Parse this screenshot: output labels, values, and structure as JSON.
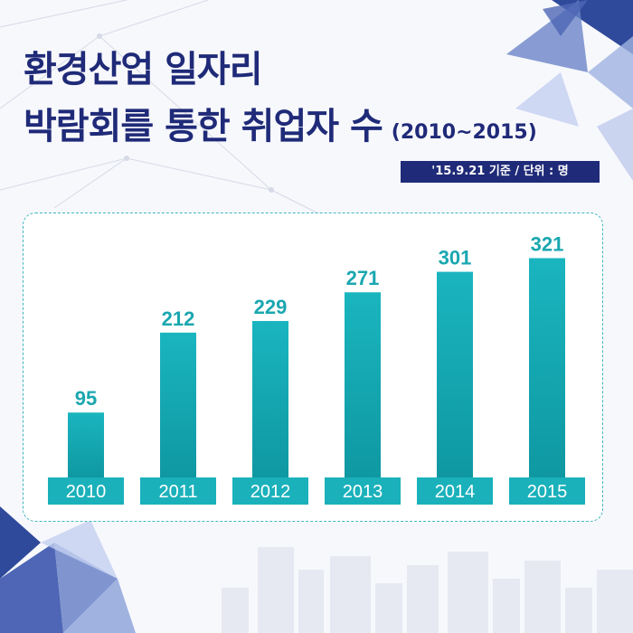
{
  "header": {
    "title_line1": "환경산업 일자리",
    "title_line2": "박람회를 통한 취업자 수",
    "title_range": "(2010~2015)",
    "note": "'15.9.21 기준 / 단위 : 명"
  },
  "colors": {
    "title": "#1f2a78",
    "bar_top": "#1ab5bf",
    "bar_bottom": "#0f98a2",
    "label": "#1aa7b0",
    "category_band": "#1ab1bb",
    "note_bg": "#1f2a78"
  },
  "chart_data": {
    "type": "bar",
    "categories": [
      "2010",
      "2011",
      "2012",
      "2013",
      "2014",
      "2015"
    ],
    "values": [
      95,
      212,
      229,
      271,
      301,
      321
    ],
    "title": "박람회를 통한 취업자 수",
    "unit": "명",
    "ylim": [
      0,
      360
    ],
    "grid": false,
    "legend": "none"
  }
}
